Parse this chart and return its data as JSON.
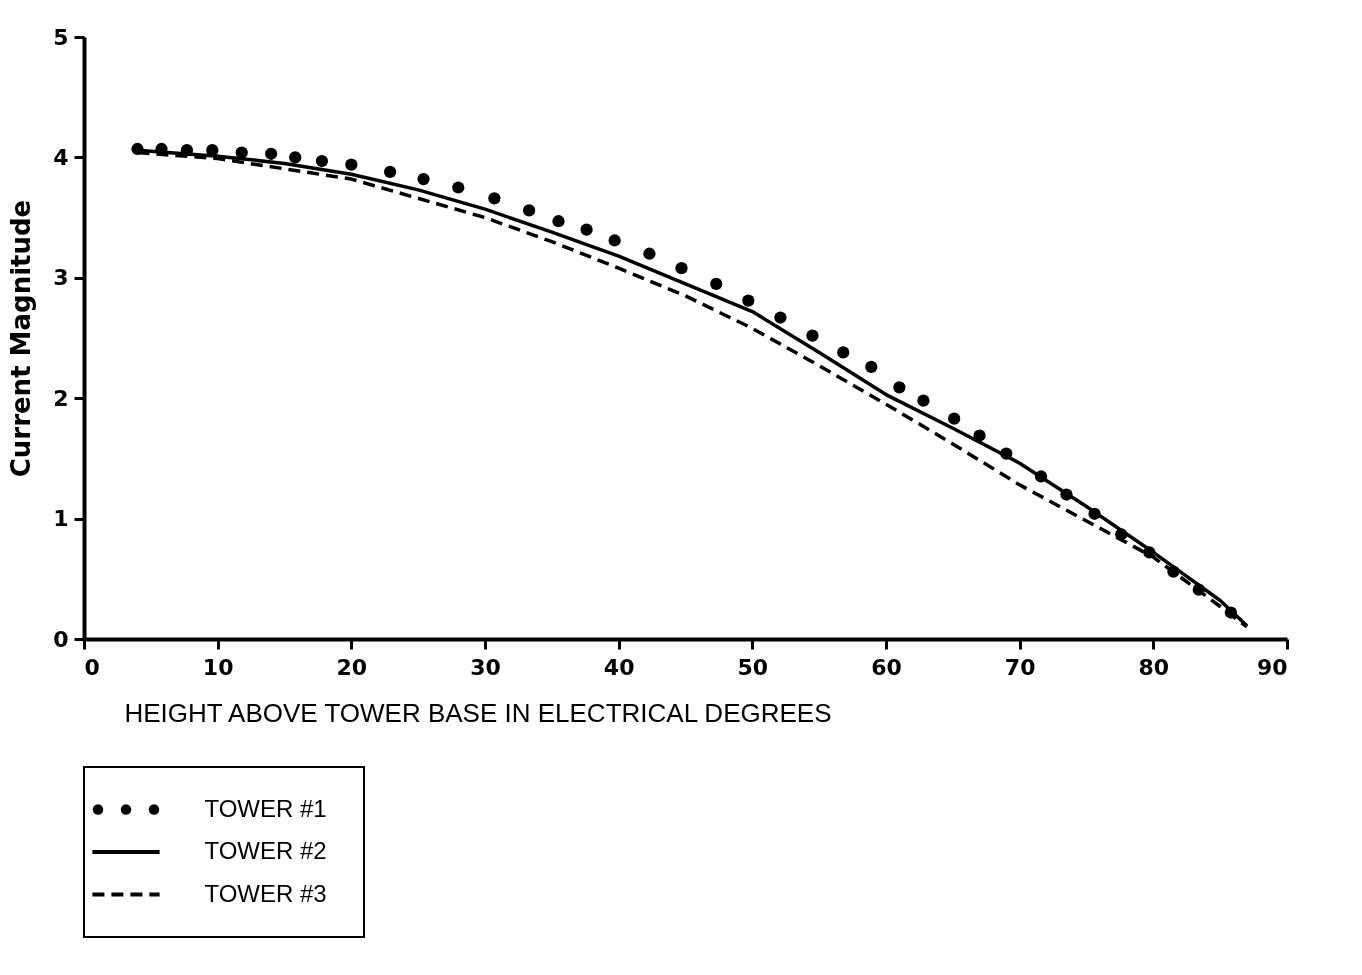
{
  "chart_data": {
    "type": "line",
    "xlabel": "HEIGHT ABOVE TOWER BASE IN ELECTRICAL DEGREES",
    "ylabel": "Current Magnitude",
    "xlim": [
      0,
      90
    ],
    "xticks": [
      0,
      10,
      20,
      30,
      40,
      50,
      60,
      70,
      80,
      90
    ],
    "ylim": [
      0,
      5
    ],
    "yticks": [
      0,
      1,
      2,
      3,
      4,
      5
    ],
    "grid": false,
    "legend": "bottom left",
    "series": [
      {
        "name": "TOWER #1",
        "type": "scatter",
        "marker": "circle",
        "color": "#000000",
        "x": [
          4.0,
          5.8,
          7.7,
          9.6,
          11.8,
          14.0,
          15.8,
          17.8,
          20.0,
          22.9,
          25.4,
          28.0,
          30.7,
          33.3,
          35.5,
          37.6,
          39.7,
          42.3,
          44.7,
          47.3,
          49.7,
          52.1,
          54.5,
          56.8,
          58.9,
          61.0,
          62.8,
          65.1,
          67.0,
          69.0,
          71.6,
          73.5,
          75.6,
          77.6,
          79.7,
          81.5,
          83.4,
          85.8
        ],
        "values": [
          4.07,
          4.07,
          4.06,
          4.06,
          4.04,
          4.03,
          4.0,
          3.97,
          3.94,
          3.88,
          3.82,
          3.75,
          3.66,
          3.56,
          3.47,
          3.4,
          3.31,
          3.2,
          3.08,
          2.95,
          2.81,
          2.67,
          2.52,
          2.38,
          2.26,
          2.09,
          1.98,
          1.83,
          1.69,
          1.54,
          1.35,
          1.2,
          1.04,
          0.87,
          0.72,
          0.56,
          0.41,
          0.22
        ]
      },
      {
        "name": "TOWER #2",
        "type": "line",
        "line_style": "solid",
        "color": "#000000",
        "x": [
          4,
          10,
          15,
          20,
          25,
          30,
          35,
          40,
          45,
          50,
          55,
          60,
          65,
          70,
          75,
          80,
          85,
          87
        ],
        "values": [
          4.06,
          4.01,
          3.95,
          3.86,
          3.73,
          3.57,
          3.38,
          3.18,
          2.95,
          2.72,
          2.38,
          2.03,
          1.75,
          1.46,
          1.1,
          0.72,
          0.32,
          0.11
        ]
      },
      {
        "name": "TOWER #3",
        "type": "line",
        "line_style": "dashed",
        "color": "#000000",
        "x": [
          4,
          10,
          20,
          30,
          35,
          40,
          45,
          50,
          55,
          60,
          65,
          70,
          75,
          80,
          85,
          87
        ],
        "values": [
          4.04,
          3.99,
          3.82,
          3.5,
          3.3,
          3.08,
          2.85,
          2.58,
          2.27,
          1.95,
          1.62,
          1.28,
          0.98,
          0.68,
          0.27,
          0.1
        ]
      }
    ]
  }
}
